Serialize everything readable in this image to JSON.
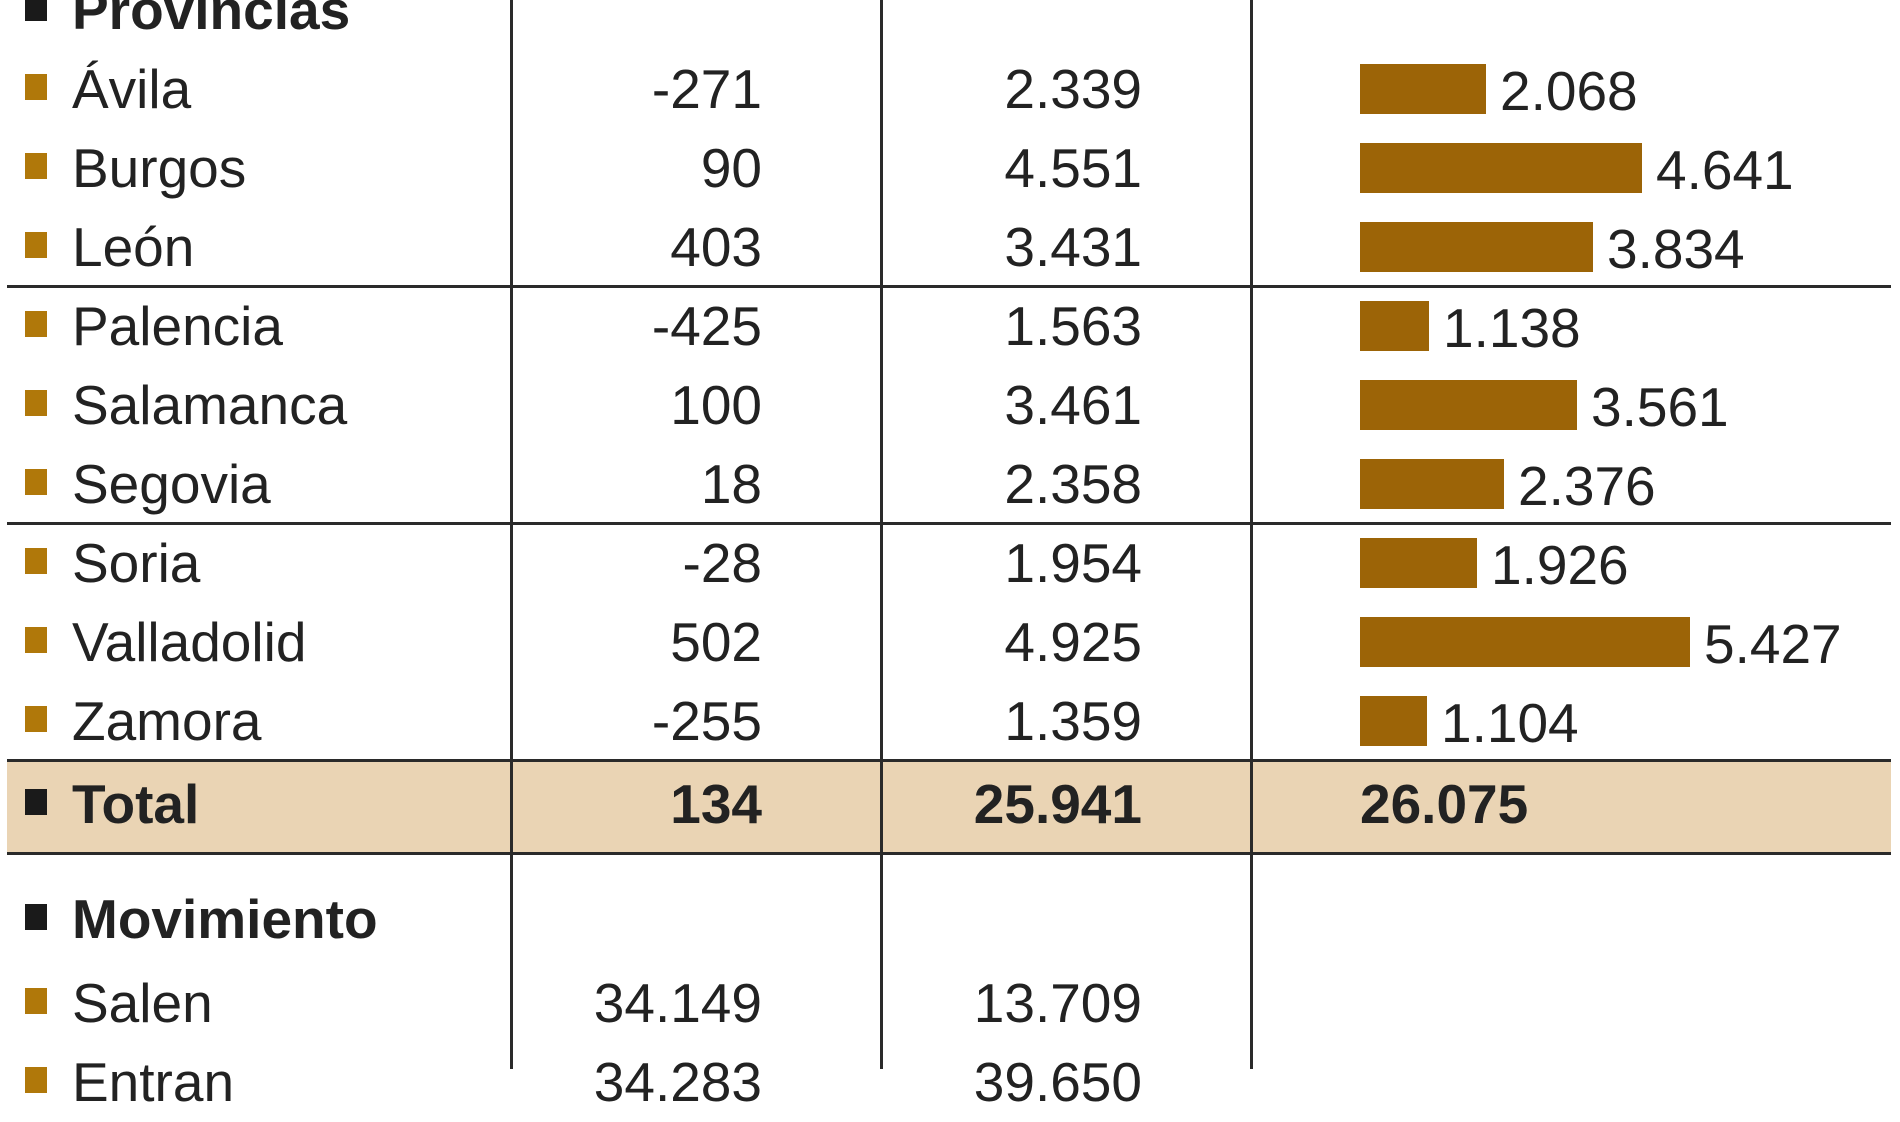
{
  "colors": {
    "bar": "#9c6407",
    "bullet": "#b0780a",
    "header_bullet": "#1a1a1a",
    "total_band": "#ead4b4",
    "rule": "#2a2a2a",
    "text": "#222222"
  },
  "section_provincias": {
    "label": "Provincias"
  },
  "rows": [
    {
      "name": "Ávila",
      "col1": "-271",
      "col2": "2.339",
      "col3": "2.068"
    },
    {
      "name": "Burgos",
      "col1": "90",
      "col2": "4.551",
      "col3": "4.641"
    },
    {
      "name": "León",
      "col1": "403",
      "col2": "3.431",
      "col3": "3.834"
    },
    {
      "name": "Palencia",
      "col1": "-425",
      "col2": "1.563",
      "col3": "1.138"
    },
    {
      "name": "Salamanca",
      "col1": "100",
      "col2": "3.461",
      "col3": "3.561"
    },
    {
      "name": "Segovia",
      "col1": "18",
      "col2": "2.358",
      "col3": "2.376"
    },
    {
      "name": "Soria",
      "col1": "-28",
      "col2": "1.954",
      "col3": "1.926"
    },
    {
      "name": "Valladolid",
      "col1": "502",
      "col2": "4.925",
      "col3": "5.427"
    },
    {
      "name": "Zamora",
      "col1": "-255",
      "col2": "1.359",
      "col3": "1.104"
    }
  ],
  "total": {
    "name": "Total",
    "col1": "134",
    "col2": "25.941",
    "col3": "26.075"
  },
  "section_movimiento": {
    "label": "Movimiento"
  },
  "movimiento_rows": [
    {
      "name": "Salen",
      "col1": "34.149",
      "col2": "13.709"
    },
    {
      "name": "Entran",
      "col1": "34.283",
      "col2": "39.650"
    }
  ],
  "chart_data": {
    "type": "bar",
    "orientation": "horizontal",
    "categories": [
      "Ávila",
      "Burgos",
      "León",
      "Palencia",
      "Salamanca",
      "Segovia",
      "Soria",
      "Valladolid",
      "Zamora"
    ],
    "values": [
      2068,
      4641,
      3834,
      1138,
      3561,
      2376,
      1926,
      5427,
      1104
    ],
    "value_labels": [
      "2.068",
      "4.641",
      "3.834",
      "1.138",
      "3.561",
      "2.376",
      "1.926",
      "5.427",
      "1.104"
    ],
    "total": 26075,
    "grid": false,
    "xlim": [
      0,
      6000
    ]
  }
}
